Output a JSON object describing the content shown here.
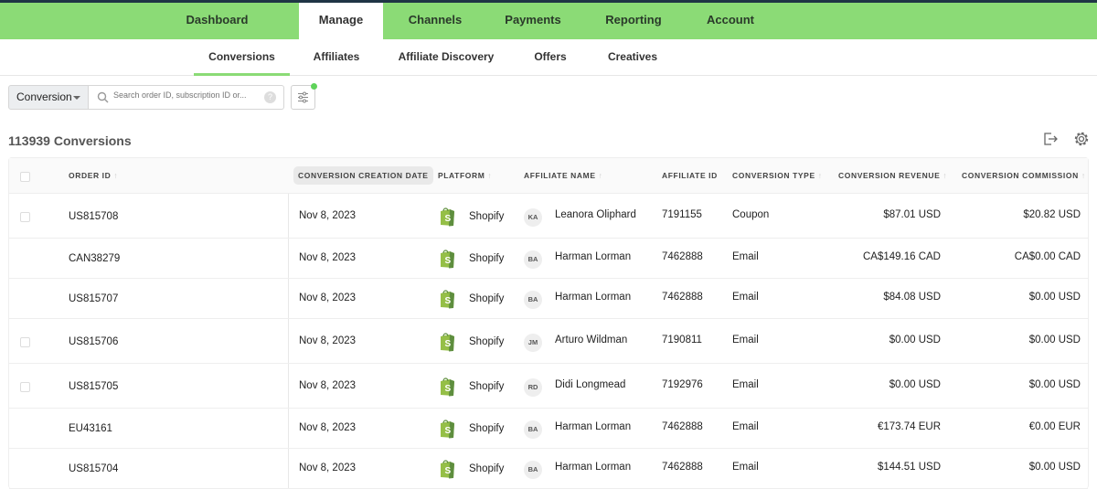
{
  "nav": {
    "main": [
      "Dashboard",
      "Manage",
      "Channels",
      "Payments",
      "Reporting",
      "Account"
    ],
    "active_main": "Manage",
    "sub": [
      "Conversions",
      "Affiliates",
      "Affiliate Discovery",
      "Offers",
      "Creatives"
    ],
    "active_sub": "Conversions",
    "accent": "#8bdb76"
  },
  "toolbar": {
    "select_value": "Conversion",
    "search_placeholder": "Search order ID, subscription ID or...",
    "help": "?"
  },
  "summary": {
    "count_label": "113939 Conversions"
  },
  "table": {
    "columns": [
      "ORDER ID",
      "CONVERSION CREATION DATE",
      "PLATFORM",
      "AFFILIATE NAME",
      "AFFILIATE ID",
      "CONVERSION TYPE",
      "CONVERSION REVENUE",
      "CONVERSION COMMISSION"
    ],
    "rows": [
      {
        "order": "US815708",
        "date": "Nov 8, 2023",
        "platform": "Shopify",
        "initials": "KA",
        "name": "Leanora Oliphard",
        "aff_id": "7191155",
        "type": "Coupon",
        "revenue": "$87.01 USD",
        "commission": "$20.82 USD",
        "checkbox": true
      },
      {
        "order": "CAN38279",
        "date": "Nov 8, 2023",
        "platform": "Shopify",
        "initials": "BA",
        "name": "Harman Lorman",
        "aff_id": "7462888",
        "type": "Email",
        "revenue": "CA$149.16 CAD",
        "commission": "CA$0.00 CAD",
        "checkbox": false
      },
      {
        "order": "US815707",
        "date": "Nov 8, 2023",
        "platform": "Shopify",
        "initials": "BA",
        "name": "Harman Lorman",
        "aff_id": "7462888",
        "type": "Email",
        "revenue": "$84.08 USD",
        "commission": "$0.00 USD",
        "checkbox": false
      },
      {
        "order": "US815706",
        "date": "Nov 8, 2023",
        "platform": "Shopify",
        "initials": "JM",
        "name": "Arturo Wildman",
        "aff_id": "7190811",
        "type": "Email",
        "revenue": "$0.00 USD",
        "commission": "$0.00 USD",
        "checkbox": true
      },
      {
        "order": "US815705",
        "date": "Nov 8, 2023",
        "platform": "Shopify",
        "initials": "RD",
        "name": "Didi Longmead",
        "aff_id": "7192976",
        "type": "Email",
        "revenue": "$0.00 USD",
        "commission": "$0.00 USD",
        "checkbox": true
      },
      {
        "order": "EU43161",
        "date": "Nov 8, 2023",
        "platform": "Shopify",
        "initials": "BA",
        "name": "Harman Lorman",
        "aff_id": "7462888",
        "type": "Email",
        "revenue": "€173.74 EUR",
        "commission": "€0.00 EUR",
        "checkbox": false
      },
      {
        "order": "US815704",
        "date": "Nov 8, 2023",
        "platform": "Shopify",
        "initials": "BA",
        "name": "Harman Lorman",
        "aff_id": "7462888",
        "type": "Email",
        "revenue": "$144.51 USD",
        "commission": "$0.00 USD",
        "checkbox": false
      }
    ]
  }
}
